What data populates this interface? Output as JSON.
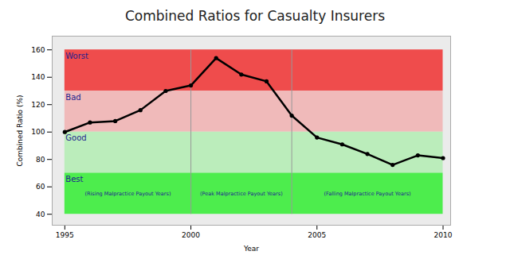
{
  "chart_data": {
    "type": "line",
    "title": "Combined Ratios for Casualty Insurers",
    "x_label": "Year",
    "y_label": "Combined Ratio (%)",
    "x": [
      1995,
      1996,
      1997,
      1998,
      1999,
      2000,
      2001,
      2002,
      2003,
      2004,
      2005,
      2006,
      2007,
      2008,
      2009,
      2010
    ],
    "values": [
      100,
      107,
      108,
      116,
      130,
      134,
      154,
      142,
      137,
      112,
      96,
      91,
      84,
      76,
      83,
      81
    ],
    "color": "#000000",
    "marker": "circle",
    "xlim": [
      1994.5,
      2010.3
    ],
    "xticks": [
      1995,
      2000,
      2005,
      2010
    ],
    "ylim": [
      32,
      170
    ],
    "yticks": [
      40,
      60,
      80,
      100,
      120,
      140,
      160
    ],
    "bands": [
      {
        "label": "Worst",
        "from": 130,
        "to": 160,
        "color": "#ef4c4c"
      },
      {
        "label": "Bad",
        "from": 100,
        "to": 130,
        "color": "#f0baba"
      },
      {
        "label": "Good",
        "from": 70,
        "to": 100,
        "color": "#bbedbb"
      },
      {
        "label": "Best",
        "from": 40,
        "to": 70,
        "color": "#4ded4d"
      }
    ],
    "periods": [
      {
        "label": "(Rising Malpractice Payout Years)",
        "from": 1995,
        "to": 2000
      },
      {
        "label": "(Peak Malpractice Payout Years)",
        "from": 2000,
        "to": 2004
      },
      {
        "label": "(Falling Malpractice Payout Years)",
        "from": 2004,
        "to": 2010
      }
    ]
  }
}
